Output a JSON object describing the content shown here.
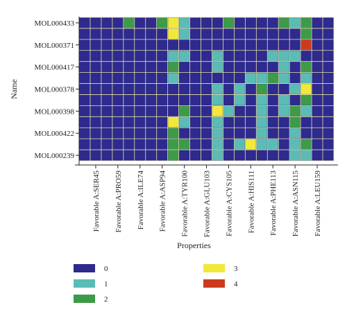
{
  "chart_data": {
    "type": "heatmap",
    "title": "",
    "xlabel": "Properties",
    "ylabel": "Name",
    "x_tick_labels": [
      "Favorable A:SER45",
      "Favorable A:PRO59",
      "Favorable A:ILE74",
      "Favorable A:ASP94",
      "Favorable A:TYR100",
      "Favorable A:GLU103",
      "Favorable A:CYS105",
      "Favorable A:HIS111",
      "Favorable A:PHE113",
      "Favorable A:ASN115",
      "Favorable A:LEU159"
    ],
    "y_tick_labels": [
      "MOL000433",
      "MOL000371",
      "MOL000417",
      "MOL000378",
      "MOL000398",
      "MOL000422",
      "MOL000239"
    ],
    "columns": 23,
    "rows": 13,
    "x_tick_every": 2,
    "y_tick_every": 2,
    "grid": true,
    "cells": [
      [
        0,
        0,
        0,
        0,
        2,
        0,
        0,
        2,
        3,
        1,
        0,
        0,
        0,
        2,
        0,
        0,
        0,
        0,
        2,
        1,
        2,
        0,
        0
      ],
      [
        0,
        0,
        0,
        0,
        0,
        0,
        0,
        0,
        3,
        1,
        0,
        0,
        0,
        0,
        0,
        0,
        0,
        0,
        0,
        0,
        2,
        0,
        0
      ],
      [
        0,
        0,
        0,
        0,
        0,
        0,
        0,
        0,
        0,
        0,
        0,
        0,
        0,
        0,
        0,
        0,
        0,
        0,
        0,
        0,
        4,
        0,
        0
      ],
      [
        0,
        0,
        0,
        0,
        0,
        0,
        0,
        0,
        1,
        1,
        0,
        0,
        1,
        0,
        0,
        0,
        0,
        1,
        1,
        1,
        0,
        0,
        0
      ],
      [
        0,
        0,
        0,
        0,
        0,
        0,
        0,
        0,
        2,
        0,
        0,
        0,
        1,
        0,
        0,
        0,
        0,
        0,
        1,
        0,
        2,
        0,
        0
      ],
      [
        0,
        0,
        0,
        0,
        0,
        0,
        0,
        0,
        1,
        0,
        0,
        0,
        0,
        0,
        0,
        1,
        1,
        2,
        1,
        0,
        1,
        0,
        0
      ],
      [
        0,
        0,
        0,
        0,
        0,
        0,
        0,
        0,
        0,
        0,
        0,
        0,
        1,
        0,
        1,
        0,
        2,
        0,
        0,
        1,
        3,
        0,
        0
      ],
      [
        0,
        0,
        0,
        0,
        0,
        0,
        0,
        0,
        0,
        0,
        0,
        0,
        1,
        0,
        1,
        0,
        1,
        0,
        1,
        0,
        2,
        0,
        0
      ],
      [
        0,
        0,
        0,
        0,
        0,
        0,
        0,
        0,
        0,
        2,
        0,
        0,
        3,
        1,
        0,
        0,
        1,
        0,
        1,
        2,
        1,
        0,
        0
      ],
      [
        0,
        0,
        0,
        0,
        0,
        0,
        0,
        0,
        3,
        1,
        0,
        0,
        1,
        0,
        0,
        0,
        1,
        0,
        0,
        2,
        0,
        0,
        0
      ],
      [
        0,
        0,
        0,
        0,
        0,
        0,
        0,
        0,
        2,
        0,
        0,
        0,
        1,
        0,
        0,
        0,
        1,
        0,
        0,
        1,
        0,
        0,
        0
      ],
      [
        0,
        0,
        0,
        0,
        0,
        0,
        0,
        0,
        2,
        2,
        0,
        0,
        1,
        0,
        1,
        3,
        1,
        1,
        0,
        1,
        2,
        0,
        0
      ],
      [
        0,
        0,
        0,
        0,
        0,
        0,
        0,
        0,
        2,
        0,
        0,
        0,
        1,
        0,
        0,
        0,
        0,
        0,
        0,
        1,
        1,
        0,
        0
      ]
    ],
    "legend_placement": "bottom",
    "legend": [
      {
        "value": 0,
        "label": "0",
        "color": "#2e2a8e"
      },
      {
        "value": 1,
        "label": "1",
        "color": "#5bbcb6"
      },
      {
        "value": 2,
        "label": "2",
        "color": "#3d9b48"
      },
      {
        "value": 3,
        "label": "3",
        "color": "#f2e83a"
      },
      {
        "value": 4,
        "label": "4",
        "color": "#cc3a1c"
      }
    ],
    "grid_line_color": "#e6e6a6"
  }
}
